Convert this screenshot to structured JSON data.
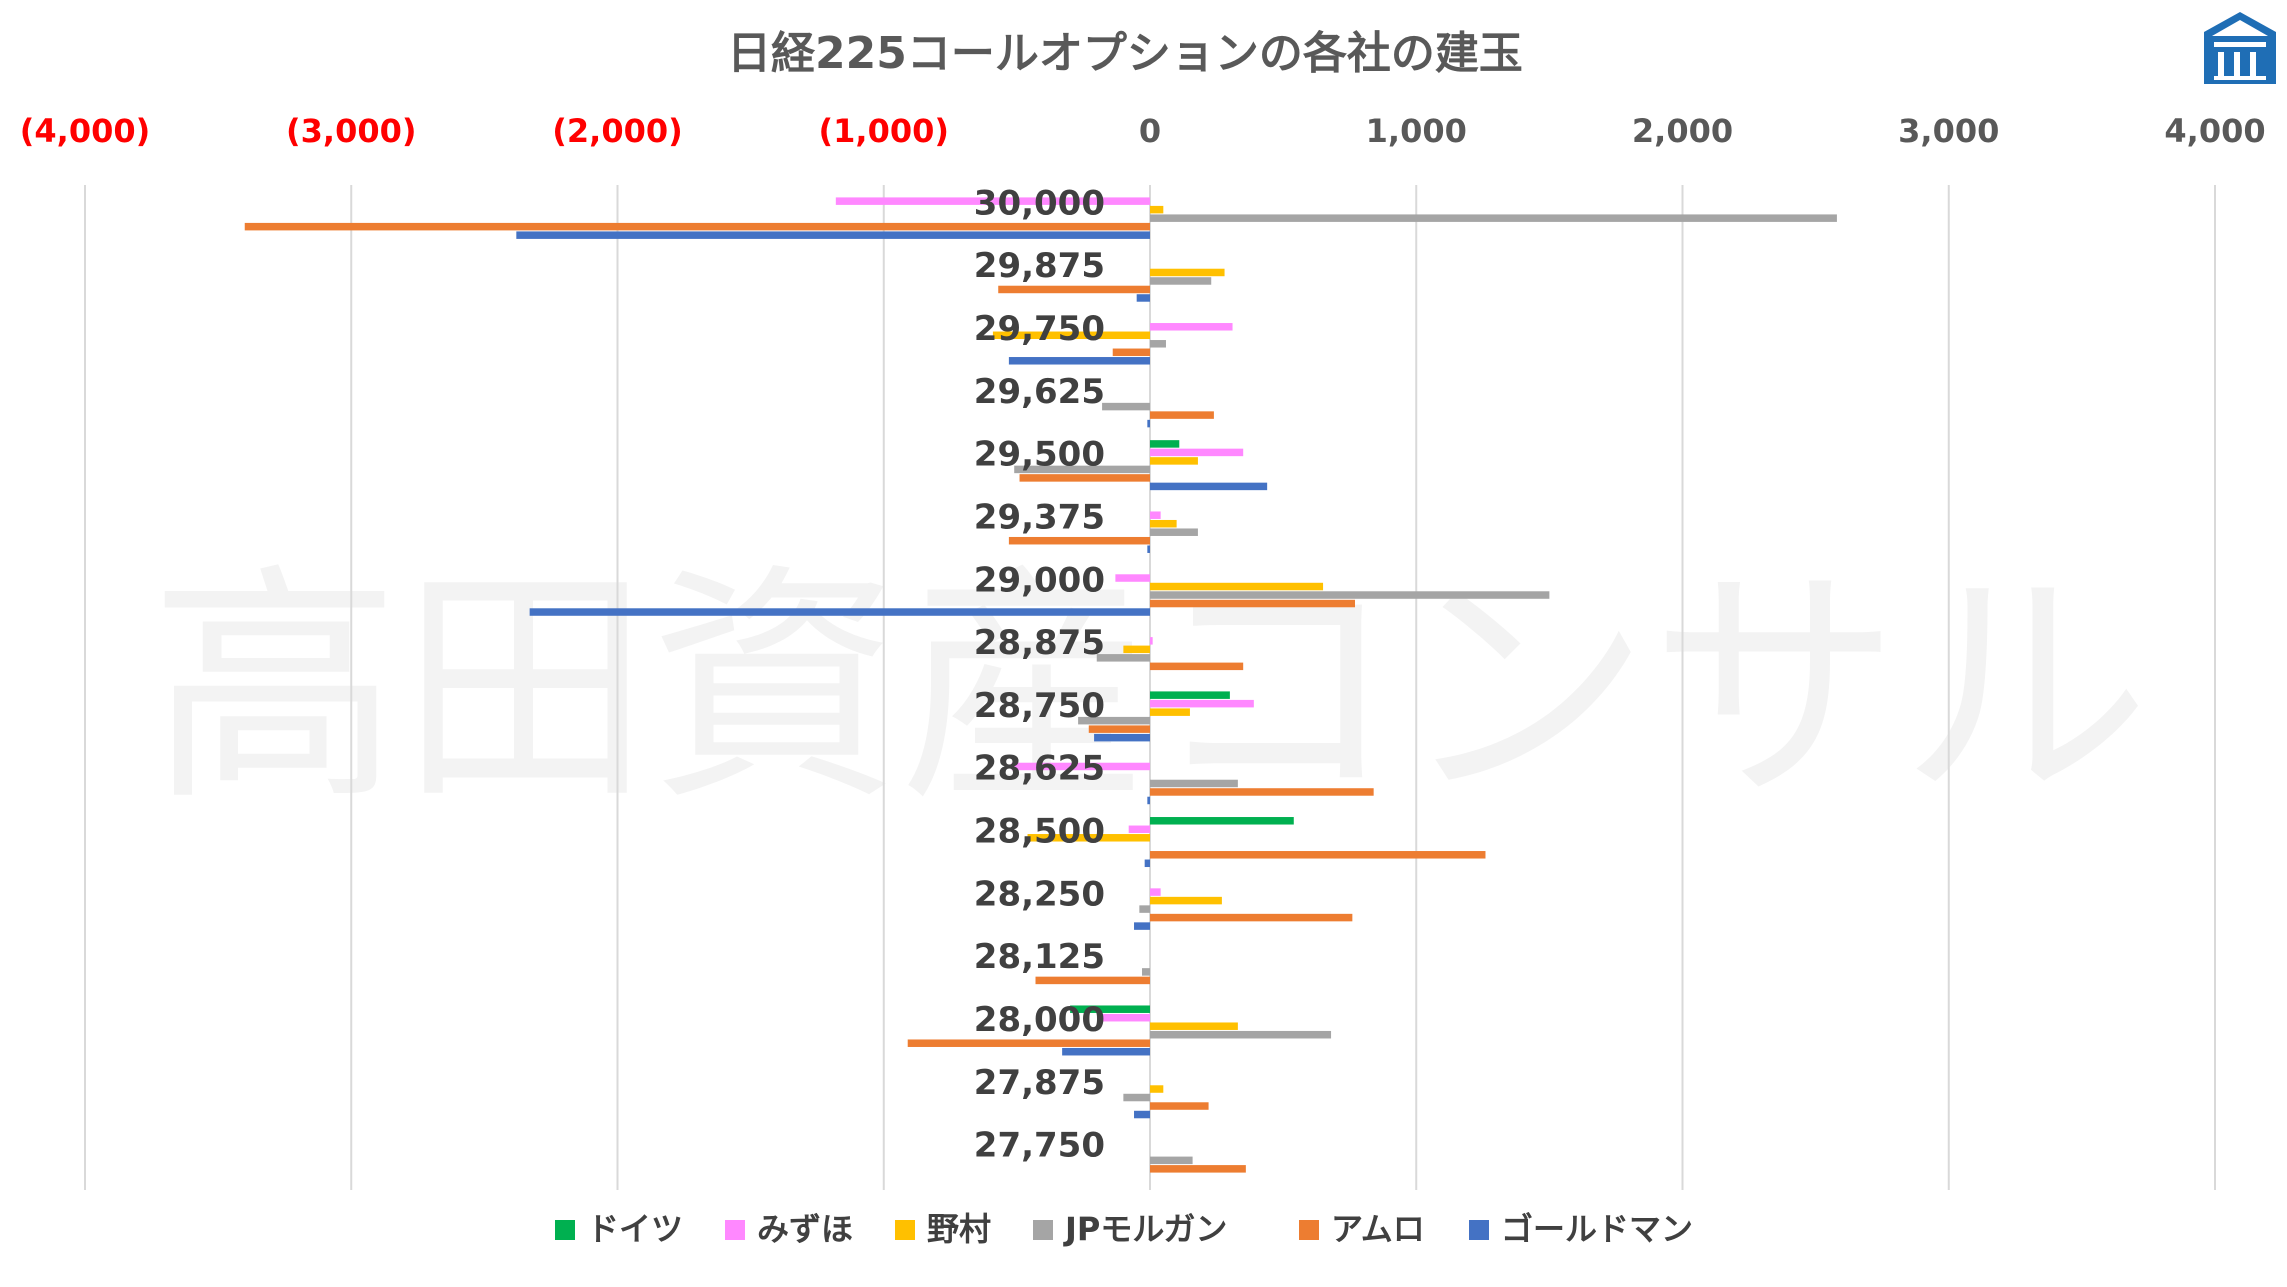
{
  "chart_data": {
    "type": "bar",
    "orientation": "horizontal",
    "title": "日経225コールオプションの各社の建玉",
    "watermark": "高田資産コンサル",
    "logo": "logo-icon",
    "xlim": [
      -4000,
      4000
    ],
    "x_ticks": [
      {
        "value": -4000,
        "label": "(4,000)"
      },
      {
        "value": -3000,
        "label": "(3,000)"
      },
      {
        "value": -2000,
        "label": "(2,000)"
      },
      {
        "value": -1000,
        "label": "(1,000)"
      },
      {
        "value": 0,
        "label": "0"
      },
      {
        "value": 1000,
        "label": "1,000"
      },
      {
        "value": 2000,
        "label": "2,000"
      },
      {
        "value": 3000,
        "label": "3,000"
      },
      {
        "value": 4000,
        "label": "4,000"
      }
    ],
    "negative_tick_color": "#ff0000",
    "positive_tick_color": "#595959",
    "grid": "vertical",
    "legend_position": "bottom",
    "categories": [
      "30,000",
      "29,875",
      "29,750",
      "29,625",
      "29,500",
      "29,375",
      "29,000",
      "28,875",
      "28,750",
      "28,625",
      "28,500",
      "28,250",
      "28,125",
      "28,000",
      "27,875",
      "27,750"
    ],
    "series": [
      {
        "name": "ドイツ",
        "color": "#00b050",
        "values": [
          0,
          0,
          0,
          0,
          110,
          0,
          0,
          0,
          300,
          0,
          540,
          0,
          0,
          -300,
          0,
          0
        ]
      },
      {
        "name": "みずほ",
        "color": "#ff88ff",
        "values": [
          -1180,
          0,
          310,
          0,
          350,
          40,
          -130,
          10,
          390,
          -520,
          -80,
          40,
          0,
          -190,
          0,
          0
        ]
      },
      {
        "name": "野村",
        "color": "#ffc000",
        "values": [
          50,
          280,
          -590,
          0,
          180,
          100,
          650,
          -100,
          150,
          0,
          -460,
          270,
          0,
          330,
          50,
          0
        ]
      },
      {
        "name": "JPモルガン",
        "color": "#a5a5a5",
        "values": [
          2580,
          230,
          60,
          -180,
          -510,
          180,
          1500,
          -200,
          -270,
          330,
          0,
          -40,
          -30,
          680,
          -100,
          160
        ]
      },
      {
        "name": "アムロ",
        "color": "#ed7d31",
        "values": [
          -3400,
          -570,
          -140,
          240,
          -490,
          -530,
          770,
          350,
          -230,
          840,
          1260,
          760,
          -430,
          -910,
          220,
          360
        ]
      },
      {
        "name": "ゴールドマン",
        "color": "#4472c4",
        "values": [
          -2380,
          -50,
          -530,
          -10,
          440,
          -10,
          -2330,
          0,
          -210,
          -10,
          -20,
          -60,
          0,
          -330,
          -60,
          0
        ]
      }
    ]
  }
}
